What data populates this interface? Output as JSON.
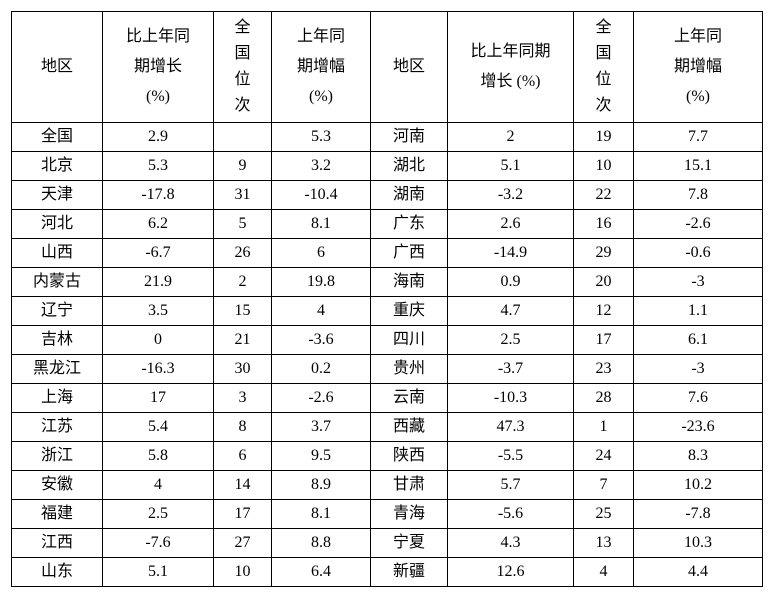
{
  "page": {
    "background": "#ffffff",
    "text_color": "#000000",
    "border_color": "#000000"
  },
  "table": {
    "headers": {
      "region_left": "地区",
      "growth_left": "比上年同\n期增长\n(%)",
      "rank_left": "全\n国\n位\n次",
      "prev_left": "上年同\n期增幅\n(%)",
      "region_right": "地区",
      "growth_right": "比上年同期\n增长 (%)",
      "rank_right": "全\n国\n位\n次",
      "prev_right": "上年同\n期增幅\n(%)"
    },
    "rows": [
      {
        "l_region": "全国",
        "l_growth": "2.9",
        "l_rank": "",
        "l_prev": "5.3",
        "r_region": "河南",
        "r_growth": "2",
        "r_rank": "19",
        "r_prev": "7.7"
      },
      {
        "l_region": "北京",
        "l_growth": "5.3",
        "l_rank": "9",
        "l_prev": "3.2",
        "r_region": "湖北",
        "r_growth": "5.1",
        "r_rank": "10",
        "r_prev": "15.1"
      },
      {
        "l_region": "天津",
        "l_growth": "-17.8",
        "l_rank": "31",
        "l_prev": "-10.4",
        "r_region": "湖南",
        "r_growth": "-3.2",
        "r_rank": "22",
        "r_prev": "7.8"
      },
      {
        "l_region": "河北",
        "l_growth": "6.2",
        "l_rank": "5",
        "l_prev": "8.1",
        "r_region": "广东",
        "r_growth": "2.6",
        "r_rank": "16",
        "r_prev": "-2.6"
      },
      {
        "l_region": "山西",
        "l_growth": "-6.7",
        "l_rank": "26",
        "l_prev": "6",
        "r_region": "广西",
        "r_growth": "-14.9",
        "r_rank": "29",
        "r_prev": "-0.6"
      },
      {
        "l_region": "内蒙古",
        "l_growth": "21.9",
        "l_rank": "2",
        "l_prev": "19.8",
        "r_region": "海南",
        "r_growth": "0.9",
        "r_rank": "20",
        "r_prev": "-3"
      },
      {
        "l_region": "辽宁",
        "l_growth": "3.5",
        "l_rank": "15",
        "l_prev": "4",
        "r_region": "重庆",
        "r_growth": "4.7",
        "r_rank": "12",
        "r_prev": "1.1"
      },
      {
        "l_region": "吉林",
        "l_growth": "0",
        "l_rank": "21",
        "l_prev": "-3.6",
        "r_region": "四川",
        "r_growth": "2.5",
        "r_rank": "17",
        "r_prev": "6.1"
      },
      {
        "l_region": "黑龙江",
        "l_growth": "-16.3",
        "l_rank": "30",
        "l_prev": "0.2",
        "r_region": "贵州",
        "r_growth": "-3.7",
        "r_rank": "23",
        "r_prev": "-3"
      },
      {
        "l_region": "上海",
        "l_growth": "17",
        "l_rank": "3",
        "l_prev": "-2.6",
        "r_region": "云南",
        "r_growth": "-10.3",
        "r_rank": "28",
        "r_prev": "7.6"
      },
      {
        "l_region": "江苏",
        "l_growth": "5.4",
        "l_rank": "8",
        "l_prev": "3.7",
        "r_region": "西藏",
        "r_growth": "47.3",
        "r_rank": "1",
        "r_prev": "-23.6"
      },
      {
        "l_region": "浙江",
        "l_growth": "5.8",
        "l_rank": "6",
        "l_prev": "9.5",
        "r_region": "陕西",
        "r_growth": "-5.5",
        "r_rank": "24",
        "r_prev": "8.3"
      },
      {
        "l_region": "安徽",
        "l_growth": "4",
        "l_rank": "14",
        "l_prev": "8.9",
        "r_region": "甘肃",
        "r_growth": "5.7",
        "r_rank": "7",
        "r_prev": "10.2"
      },
      {
        "l_region": "福建",
        "l_growth": "2.5",
        "l_rank": "17",
        "l_prev": "8.1",
        "r_region": "青海",
        "r_growth": "-5.6",
        "r_rank": "25",
        "r_prev": "-7.8"
      },
      {
        "l_region": "江西",
        "l_growth": "-7.6",
        "l_rank": "27",
        "l_prev": "8.8",
        "r_region": "宁夏",
        "r_growth": "4.3",
        "r_rank": "13",
        "r_prev": "10.3"
      },
      {
        "l_region": "山东",
        "l_growth": "5.1",
        "l_rank": "10",
        "l_prev": "6.4",
        "r_region": "新疆",
        "r_growth": "12.6",
        "r_rank": "4",
        "r_prev": "4.4"
      }
    ]
  }
}
